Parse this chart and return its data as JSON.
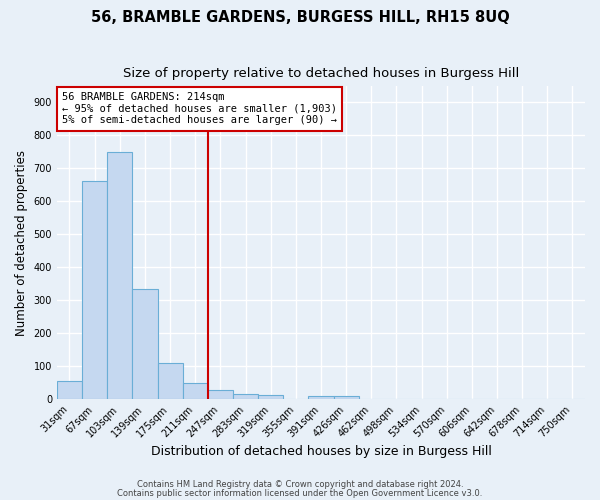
{
  "title": "56, BRAMBLE GARDENS, BURGESS HILL, RH15 8UQ",
  "subtitle": "Size of property relative to detached houses in Burgess Hill",
  "xlabel": "Distribution of detached houses by size in Burgess Hill",
  "ylabel": "Number of detached properties",
  "bar_labels": [
    "31sqm",
    "67sqm",
    "103sqm",
    "139sqm",
    "175sqm",
    "211sqm",
    "247sqm",
    "283sqm",
    "319sqm",
    "355sqm",
    "391sqm",
    "426sqm",
    "462sqm",
    "498sqm",
    "534sqm",
    "570sqm",
    "606sqm",
    "642sqm",
    "678sqm",
    "714sqm",
    "750sqm"
  ],
  "bar_values": [
    55,
    660,
    750,
    335,
    110,
    50,
    27,
    17,
    12,
    0,
    10,
    10,
    0,
    0,
    0,
    0,
    0,
    0,
    0,
    0,
    0
  ],
  "bar_color": "#c5d8f0",
  "bar_edge_color": "#6aaed6",
  "vline_x": 5.5,
  "vline_color": "#cc0000",
  "ylim": [
    0,
    950
  ],
  "yticks": [
    0,
    100,
    200,
    300,
    400,
    500,
    600,
    700,
    800,
    900
  ],
  "annotation_text": "56 BRAMBLE GARDENS: 214sqm\n← 95% of detached houses are smaller (1,903)\n5% of semi-detached houses are larger (90) →",
  "annotation_box_color": "#ffffff",
  "annotation_box_edge_color": "#cc0000",
  "footer_line1": "Contains HM Land Registry data © Crown copyright and database right 2024.",
  "footer_line2": "Contains public sector information licensed under the Open Government Licence v3.0.",
  "background_color": "#e8f0f8",
  "plot_background_color": "#e8f0f8",
  "grid_color": "#ffffff",
  "title_fontsize": 10.5,
  "subtitle_fontsize": 9.5,
  "xlabel_fontsize": 9,
  "ylabel_fontsize": 8.5,
  "tick_fontsize": 7,
  "annotation_fontsize": 7.5,
  "footer_fontsize": 6
}
